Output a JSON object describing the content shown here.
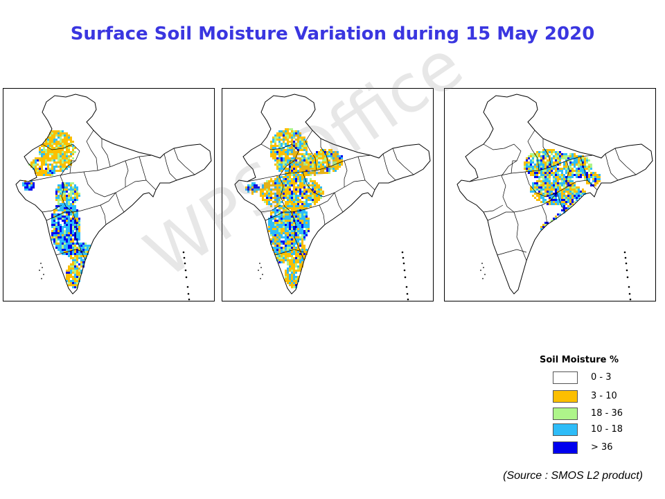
{
  "title": "Surface Soil Moisture Variation during 15 May 2020",
  "title_color": "#3a36e0",
  "watermark": "WPS Office",
  "legend": {
    "title": "Soil Moisture %",
    "items": [
      {
        "label": "0 - 3",
        "color": "#ffffff"
      },
      {
        "label": "3 - 10",
        "color": "#fcbf00"
      },
      {
        "label": "18 - 36",
        "color": "#aef58a"
      },
      {
        "label": "10 - 18",
        "color": "#2ebcf8"
      },
      {
        "label": "> 36",
        "color": "#0000ee"
      }
    ]
  },
  "source": "(Source : SMOS L2 product)",
  "maps": [
    {
      "name": "map-panel-west",
      "coverage": "western and southern peninsula"
    },
    {
      "name": "map-panel-central",
      "coverage": "central and western India"
    },
    {
      "name": "map-panel-east",
      "coverage": "eastern India"
    }
  ]
}
